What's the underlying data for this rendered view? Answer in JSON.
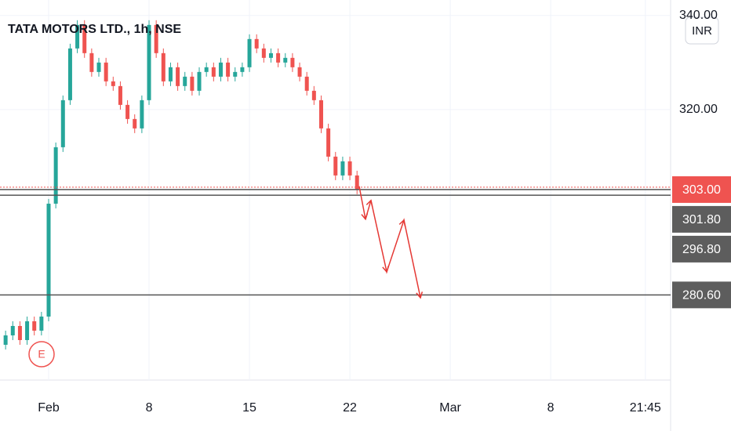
{
  "chart_data": {
    "type": "candlestick",
    "title": "TATA MOTORS LTD., 1h, NSE",
    "currency": "INR",
    "earnings_label": "E",
    "x": [
      -2,
      -1.5,
      -1,
      -0.5,
      0,
      0.5,
      1,
      1.5,
      2,
      2.5,
      3,
      3.5,
      4,
      4.5,
      5,
      5.5,
      6,
      6.5,
      7,
      7.5,
      8,
      8.5,
      9,
      9.5,
      10,
      10.5,
      11,
      11.5,
      12,
      12.5,
      13,
      13.5,
      14,
      14.5,
      15,
      15.5,
      16,
      16.5,
      17,
      17.5,
      18,
      18.5,
      19,
      19.5,
      20,
      20.5,
      21,
      21.5,
      22,
      22.5
    ],
    "open": [
      270,
      272,
      274,
      271,
      275,
      273,
      276,
      300,
      312,
      322,
      333,
      338,
      332,
      328,
      330,
      326,
      325,
      321,
      318,
      316,
      322,
      338,
      332,
      326,
      329,
      325,
      327,
      324,
      328,
      329,
      327,
      330,
      327,
      328,
      329,
      335,
      333,
      331,
      332,
      330,
      331,
      329,
      327,
      324,
      322,
      316,
      310,
      306,
      309,
      306
    ],
    "high": [
      273,
      275,
      275,
      276,
      276,
      277,
      301,
      313,
      323,
      334,
      339,
      339,
      333,
      331,
      331,
      327,
      326,
      322,
      319,
      323,
      339,
      339,
      333,
      330,
      330,
      328,
      328,
      329,
      330,
      330,
      331,
      331,
      329,
      330,
      336,
      336,
      334,
      333,
      333,
      332,
      332,
      330,
      328,
      325,
      323,
      317,
      311,
      310,
      310,
      307
    ],
    "low": [
      269,
      271,
      270,
      270,
      272,
      272,
      275,
      299,
      311,
      321,
      332,
      331,
      327,
      327,
      325,
      324,
      320,
      317,
      315,
      315,
      321,
      331,
      325,
      325,
      324,
      324,
      323,
      323,
      327,
      326,
      326,
      326,
      326,
      327,
      328,
      332,
      330,
      330,
      329,
      329,
      328,
      326,
      323,
      321,
      315,
      309,
      305,
      305,
      305,
      302
    ],
    "close": [
      272,
      274,
      271,
      275,
      273,
      276,
      300,
      312,
      322,
      333,
      338,
      332,
      328,
      330,
      326,
      325,
      321,
      318,
      316,
      322,
      338,
      332,
      326,
      329,
      325,
      327,
      324,
      328,
      329,
      327,
      330,
      327,
      328,
      329,
      335,
      333,
      331,
      332,
      330,
      331,
      329,
      327,
      324,
      322,
      316,
      310,
      306,
      309,
      306,
      303
    ],
    "up_color": "#26a69a",
    "down_color": "#ef5350",
    "xlim": [
      -2.39,
      44.36
    ],
    "xticks": [
      {
        "value": 1,
        "label": "Feb"
      },
      8,
      15,
      22,
      {
        "value": 29,
        "label": "Mar"
      },
      {
        "value": 36,
        "label": "8"
      },
      {
        "value": 42.6,
        "label": "21:45"
      }
    ],
    "ylim": [
      262.5,
      343.3
    ],
    "yticks": [
      {
        "value": 340,
        "label": "340.00"
      },
      {
        "value": 320,
        "label": "320.00"
      }
    ],
    "grid": true,
    "levels": [
      303,
      301.8,
      280.6
    ],
    "price_labels": [
      {
        "value": 303,
        "label": "303.00",
        "color": "#ef5350"
      },
      {
        "value": 301.8,
        "label": "301.80",
        "color": "#5d5d5d"
      },
      {
        "value": 296.8,
        "label": "296.80",
        "color": "#5d5d5d"
      },
      {
        "value": 280.6,
        "label": "280.60",
        "color": "#5d5d5d"
      }
    ],
    "drawing": {
      "color": "#e53935",
      "x": [
        22.65,
        23.09,
        23.47,
        24.57,
        25.77,
        26.92
      ],
      "y": [
        303.7,
        296.7,
        300.7,
        285.5,
        296.5,
        280
      ]
    }
  }
}
